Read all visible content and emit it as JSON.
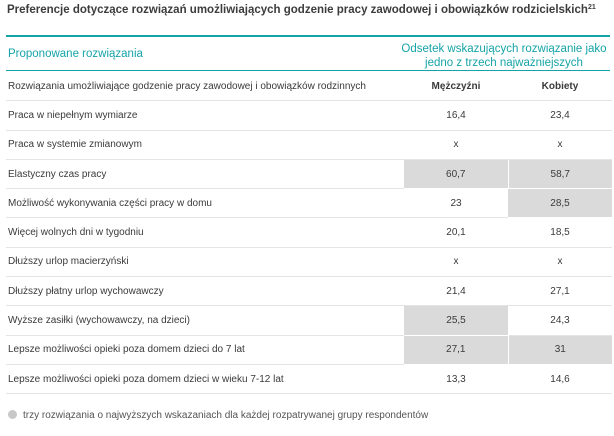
{
  "title": "Preferencje dotyczące rozwiązań umożliwiających godzenie pracy zawodowej i obowiązków rodzicielskich",
  "title_footnote": "21",
  "header": {
    "left": "Proponowane rozwiązania",
    "right": "Odsetek wskazujących rozwiązanie jako jedno z trzech najważniejszych"
  },
  "table": {
    "first_row_label": "Rozwiązania umożliwiające godzenie pracy zawodowej i obowiązków rodzinnych",
    "col_men": "Mężczyźni",
    "col_women": "Kobiety",
    "rows": [
      {
        "label": "Praca w niepełnym wymiarze",
        "men": "16,4",
        "women": "23,4"
      },
      {
        "label": "Praca w systemie zmianowym",
        "men": "x",
        "women": "x"
      },
      {
        "label": "Elastyczny czas pracy",
        "men": "60,7",
        "women": "58,7"
      },
      {
        "label": "Możliwość wykonywania części pracy w domu",
        "men": "23",
        "women": "28,5"
      },
      {
        "label": "Więcej wolnych dni w tygodniu",
        "men": "20,1",
        "women": "18,5"
      },
      {
        "label": "Dłuższy urlop macierzyński",
        "men": "x",
        "women": "x"
      },
      {
        "label": "Dłuższy płatny urlop wychowawczy",
        "men": "21,4",
        "women": "27,1"
      },
      {
        "label": "Wyższe zasiłki (wychowawczy, na dzieci)",
        "men": "25,5",
        "women": "24,3"
      },
      {
        "label": "Lepsze możliwości opieki poza domem dzieci do 7 lat",
        "men": "27,1",
        "women": "31"
      },
      {
        "label": "Lepsze możliwości opieki poza domem dzieci w wieku 7-12 lat",
        "men": "13,3",
        "women": "14,6"
      }
    ]
  },
  "legend": "trzy rozwiązania o najwyższych wskazaniach dla każdej rozpatrywanej grupy respondentów",
  "colors": {
    "accent": "#16a3a8",
    "highlight": "#dadada"
  }
}
